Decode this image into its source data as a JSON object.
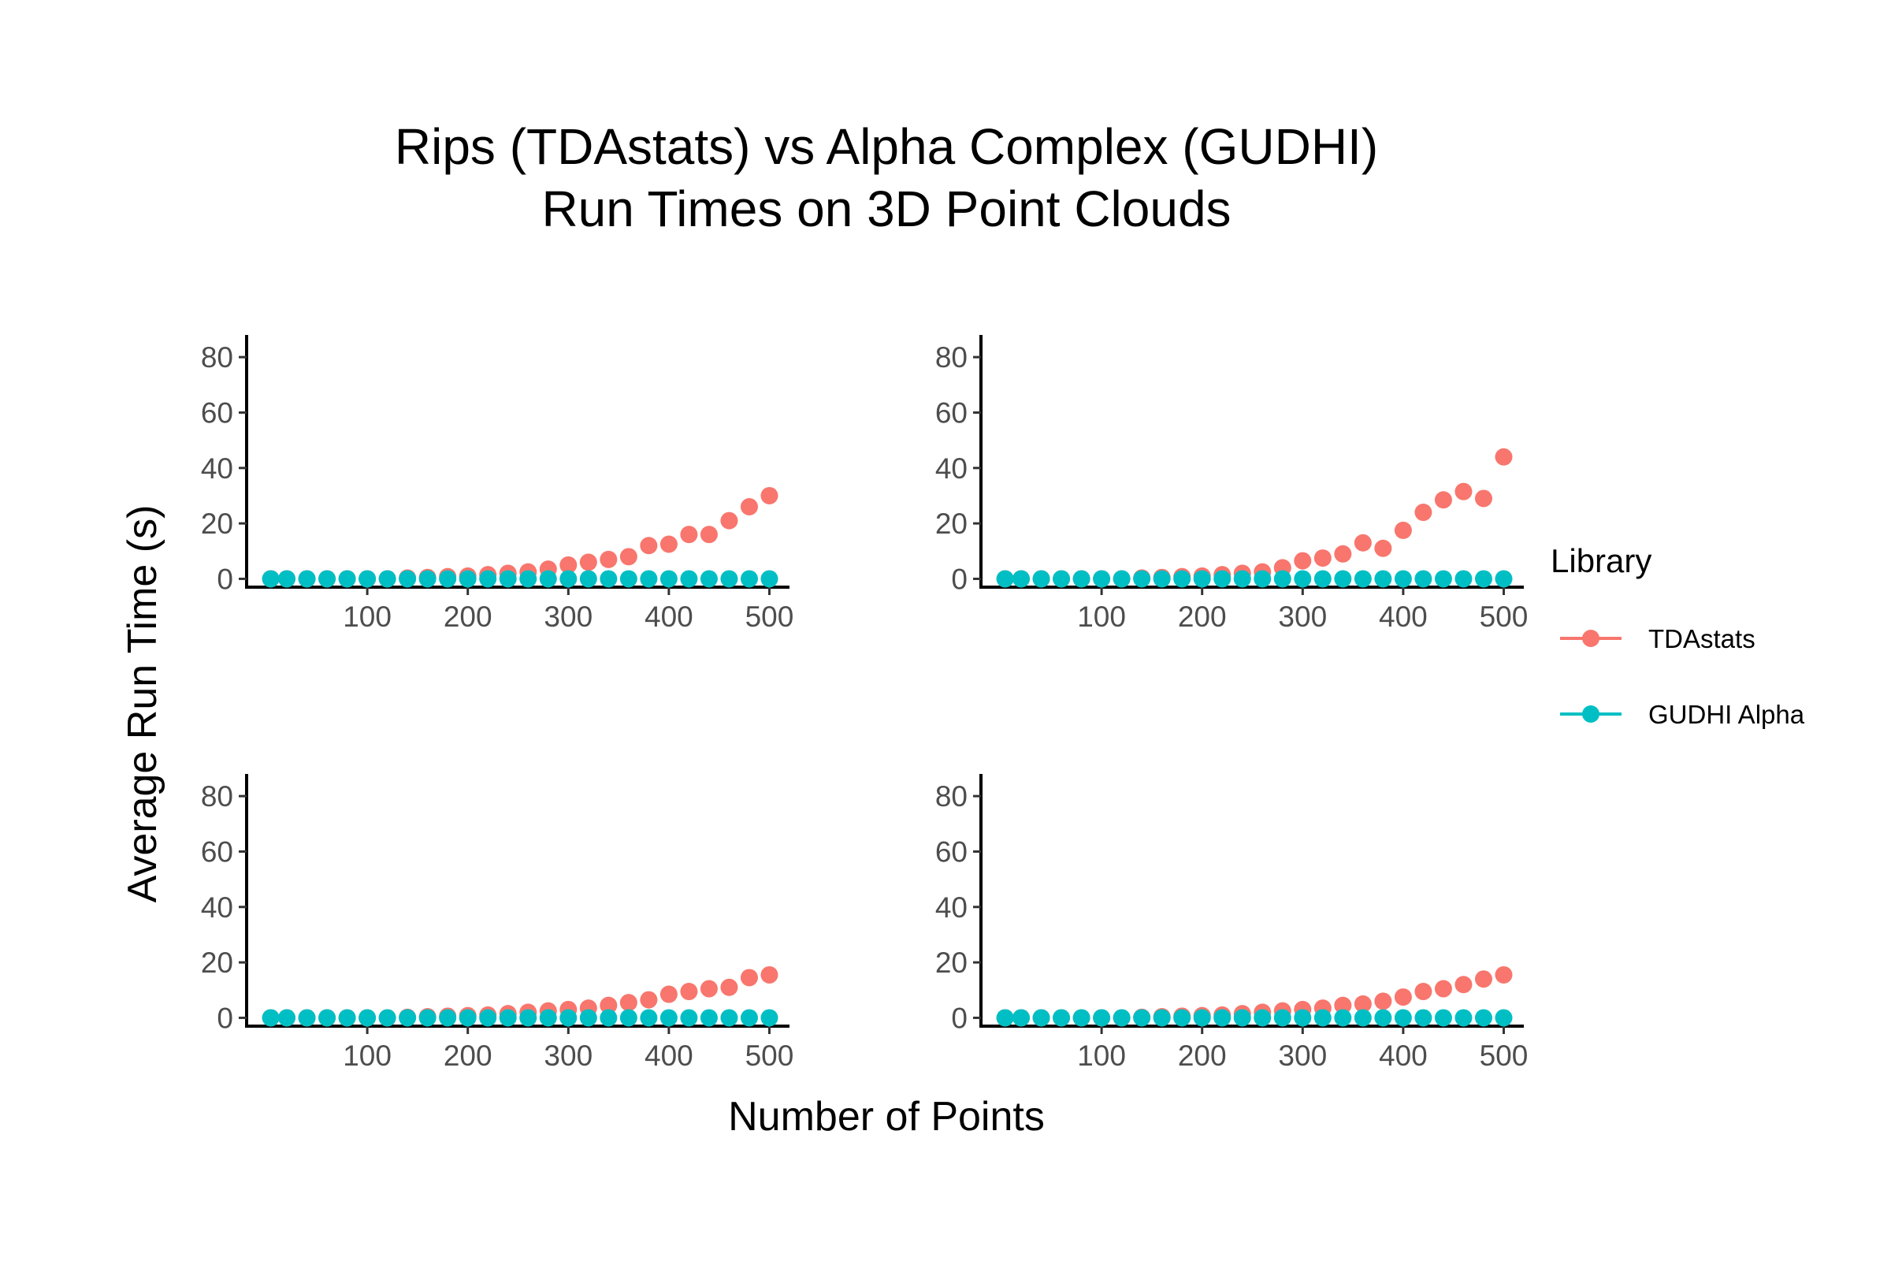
{
  "title_line1": "Rips (TDAstats) vs Alpha Complex (GUDHI)",
  "title_line2": "Run Times on 3D Point Clouds",
  "xlabel": "Number of Points",
  "ylabel": "Average Run Time (s)",
  "legend": {
    "title": "Library",
    "items": [
      {
        "label": "TDAstats",
        "color": "#F8766D"
      },
      {
        "label": "GUDHI Alpha",
        "color": "#00BFC4"
      }
    ]
  },
  "chart_data": {
    "type": "scatter",
    "x_ticks": [
      100,
      200,
      300,
      400,
      500
    ],
    "y_ticks": [
      0,
      20,
      40,
      60,
      80
    ],
    "xlim": [
      -20,
      520
    ],
    "ylim": [
      -3,
      88
    ],
    "panels": [
      {
        "series": [
          {
            "name": "TDAstats",
            "color": "#F8766D",
            "x": [
              4,
              20,
              40,
              60,
              80,
              100,
              120,
              140,
              160,
              180,
              200,
              220,
              240,
              260,
              280,
              300,
              320,
              340,
              360,
              380,
              400,
              420,
              440,
              460,
              480,
              500
            ],
            "y": [
              0,
              0,
              0,
              0,
              0,
              0,
              0,
              0.3,
              0.5,
              0.8,
              1,
              1.5,
              2,
              2.5,
              3.5,
              5,
              6,
              7,
              8,
              12,
              12.5,
              16,
              16,
              21,
              26,
              30
            ]
          },
          {
            "name": "GUDHI Alpha",
            "color": "#00BFC4",
            "x": [
              4,
              20,
              40,
              60,
              80,
              100,
              120,
              140,
              160,
              180,
              200,
              220,
              240,
              260,
              280,
              300,
              320,
              340,
              360,
              380,
              400,
              420,
              440,
              460,
              480,
              500
            ],
            "y": [
              0,
              0,
              0,
              0,
              0,
              0,
              0,
              0,
              0,
              0,
              0,
              0,
              0,
              0,
              0,
              0,
              0,
              0,
              0,
              0,
              0,
              0,
              0,
              0,
              0,
              0
            ]
          }
        ]
      },
      {
        "series": [
          {
            "name": "TDAstats",
            "color": "#F8766D",
            "x": [
              4,
              20,
              40,
              60,
              80,
              100,
              120,
              140,
              160,
              180,
              200,
              220,
              240,
              260,
              280,
              300,
              320,
              340,
              360,
              380,
              400,
              420,
              440,
              460,
              480,
              500
            ],
            "y": [
              0,
              0,
              0,
              0,
              0,
              0,
              0,
              0.3,
              0.5,
              0.8,
              1,
              1.5,
              2,
              2.5,
              4,
              6.5,
              7.5,
              9,
              13,
              11,
              17.5,
              24,
              28.5,
              31.5,
              29,
              44
            ]
          },
          {
            "name": "GUDHI Alpha",
            "color": "#00BFC4",
            "x": [
              4,
              20,
              40,
              60,
              80,
              100,
              120,
              140,
              160,
              180,
              200,
              220,
              240,
              260,
              280,
              300,
              320,
              340,
              360,
              380,
              400,
              420,
              440,
              460,
              480,
              500
            ],
            "y": [
              0,
              0,
              0,
              0,
              0,
              0,
              0,
              0,
              0,
              0,
              0,
              0,
              0,
              0,
              0,
              0,
              0,
              0,
              0,
              0,
              0,
              0,
              0,
              0,
              0,
              0
            ]
          }
        ]
      },
      {
        "series": [
          {
            "name": "TDAstats",
            "color": "#F8766D",
            "x": [
              4,
              20,
              40,
              60,
              80,
              100,
              120,
              140,
              160,
              180,
              200,
              220,
              240,
              260,
              280,
              300,
              320,
              340,
              360,
              380,
              400,
              420,
              440,
              460,
              480,
              500
            ],
            "y": [
              0,
              0,
              0,
              0,
              0,
              0,
              0,
              0.2,
              0.4,
              0.6,
              0.8,
              1,
              1.5,
              2,
              2.5,
              3,
              3.5,
              4.5,
              5.5,
              6.5,
              8.5,
              9.5,
              10.5,
              11,
              14.5,
              15.5
            ]
          },
          {
            "name": "GUDHI Alpha",
            "color": "#00BFC4",
            "x": [
              4,
              20,
              40,
              60,
              80,
              100,
              120,
              140,
              160,
              180,
              200,
              220,
              240,
              260,
              280,
              300,
              320,
              340,
              360,
              380,
              400,
              420,
              440,
              460,
              480,
              500
            ],
            "y": [
              0,
              0,
              0,
              0,
              0,
              0,
              0,
              0,
              0,
              0,
              0,
              0,
              0,
              0,
              0,
              0,
              0,
              0,
              0,
              0,
              0,
              0,
              0,
              0,
              0,
              0
            ]
          }
        ]
      },
      {
        "series": [
          {
            "name": "TDAstats",
            "color": "#F8766D",
            "x": [
              4,
              20,
              40,
              60,
              80,
              100,
              120,
              140,
              160,
              180,
              200,
              220,
              240,
              260,
              280,
              300,
              320,
              340,
              360,
              380,
              400,
              420,
              440,
              460,
              480,
              500
            ],
            "y": [
              0,
              0,
              0,
              0,
              0,
              0,
              0,
              0.2,
              0.4,
              0.6,
              0.8,
              1,
              1.5,
              2,
              2.5,
              3,
              3.5,
              4.5,
              5,
              6,
              7.5,
              9.5,
              10.5,
              12,
              14,
              15.5
            ]
          },
          {
            "name": "GUDHI Alpha",
            "color": "#00BFC4",
            "x": [
              4,
              20,
              40,
              60,
              80,
              100,
              120,
              140,
              160,
              180,
              200,
              220,
              240,
              260,
              280,
              300,
              320,
              340,
              360,
              380,
              400,
              420,
              440,
              460,
              480,
              500
            ],
            "y": [
              0,
              0,
              0,
              0,
              0,
              0,
              0,
              0,
              0,
              0,
              0,
              0,
              0,
              0,
              0,
              0,
              0,
              0,
              0,
              0,
              0,
              0,
              0,
              0,
              0,
              0
            ]
          }
        ]
      }
    ]
  }
}
